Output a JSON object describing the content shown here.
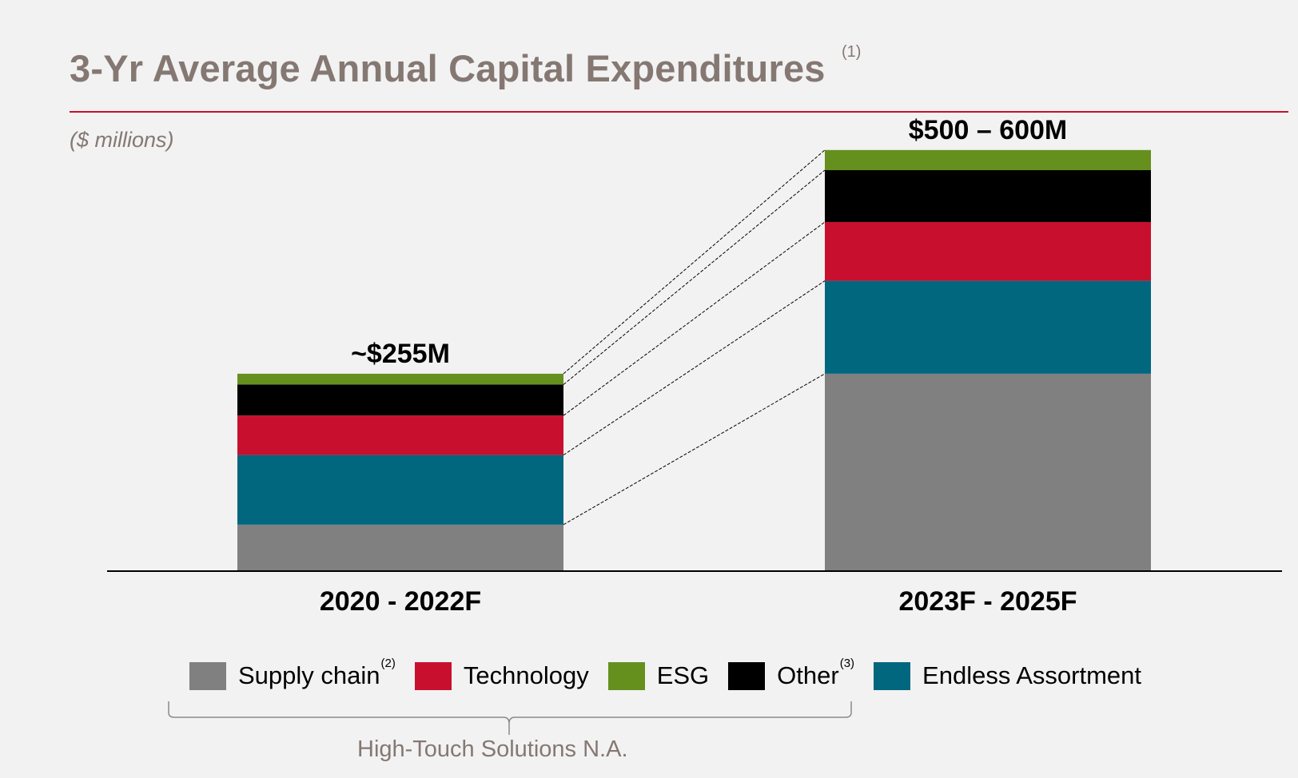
{
  "title": "3-Yr Average Annual Capital Expenditures",
  "title_note": "(1)",
  "units": "($ millions)",
  "colors": {
    "supply_chain": "#808080",
    "technology": "#c8102e",
    "esg": "#65901e",
    "other": "#000000",
    "endless_assortment": "#00677f",
    "title": "#857873",
    "rule": "#c8102e"
  },
  "chart_data": {
    "type": "bar",
    "stacked": true,
    "categories": [
      "2020 - 2022F",
      "2023F - 2025F"
    ],
    "totals_labels": [
      "~$255M",
      "$500 – 600M"
    ],
    "ylim": [
      0,
      550
    ],
    "series": [
      {
        "name": "Supply chain",
        "color": "#808080",
        "values": [
          60,
          255
        ]
      },
      {
        "name": "Endless Assortment",
        "color": "#00677f",
        "values": [
          90,
          120
        ]
      },
      {
        "name": "Technology",
        "color": "#c8102e",
        "values": [
          51,
          76
        ]
      },
      {
        "name": "Other",
        "color": "#000000",
        "values": [
          40,
          67
        ]
      },
      {
        "name": "ESG",
        "color": "#65901e",
        "values": [
          14,
          26
        ]
      }
    ],
    "connector_lines": "dashed",
    "grid": false
  },
  "legend": {
    "items": [
      {
        "label": "Supply chain",
        "note": "(2)",
        "color": "#808080"
      },
      {
        "label": "Technology",
        "note": "",
        "color": "#c8102e"
      },
      {
        "label": "ESG",
        "note": "",
        "color": "#65901e"
      },
      {
        "label": "Other",
        "note": "(3)",
        "color": "#000000"
      },
      {
        "label": "Endless Assortment",
        "note": "",
        "color": "#00677f"
      }
    ],
    "group_label": "High-Touch Solutions N.A."
  }
}
